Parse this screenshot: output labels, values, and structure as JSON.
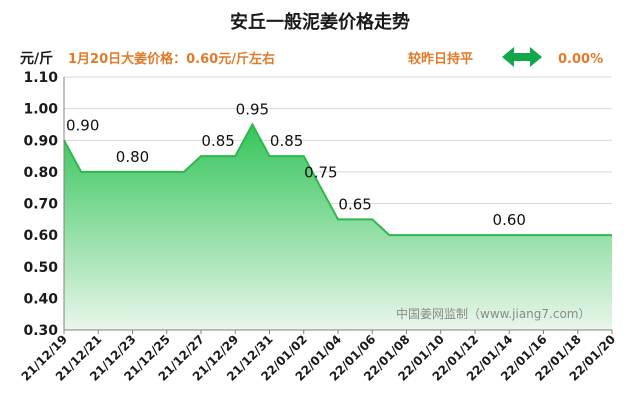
{
  "chart_data": {
    "type": "area",
    "title": "安丘一般泥姜价格走势",
    "yunit": "元/斤",
    "subtitle_left": "1月20日大姜价格：0.60元/斤左右",
    "subtitle_right_label": "较昨日持平",
    "change_pct": "0.00%",
    "watermark": "中国姜网监制（www.jiang7.com）",
    "ylim": [
      0.3,
      1.1
    ],
    "yticks": [
      "0.30",
      "0.40",
      "0.50",
      "0.60",
      "0.70",
      "0.80",
      "0.90",
      "1.00",
      "1.10"
    ],
    "xtick_labels": [
      "21/12/19",
      "21/12/21",
      "21/12/23",
      "21/12/25",
      "21/12/27",
      "21/12/29",
      "21/12/31",
      "22/01/02",
      "22/01/04",
      "22/01/06",
      "22/01/08",
      "22/01/10",
      "22/01/12",
      "22/01/14",
      "22/01/16",
      "22/01/18",
      "22/01/20"
    ],
    "x": [
      "21/12/19",
      "21/12/20",
      "21/12/21",
      "21/12/22",
      "21/12/23",
      "21/12/24",
      "21/12/25",
      "21/12/26",
      "21/12/27",
      "21/12/28",
      "21/12/29",
      "21/12/30",
      "21/12/31",
      "22/01/01",
      "22/01/02",
      "22/01/03",
      "22/01/04",
      "22/01/05",
      "22/01/06",
      "22/01/07",
      "22/01/08",
      "22/01/09",
      "22/01/10",
      "22/01/11",
      "22/01/12",
      "22/01/13",
      "22/01/14",
      "22/01/15",
      "22/01/16",
      "22/01/17",
      "22/01/18",
      "22/01/19",
      "22/01/20"
    ],
    "values": [
      0.9,
      0.8,
      0.8,
      0.8,
      0.8,
      0.8,
      0.8,
      0.8,
      0.85,
      0.85,
      0.85,
      0.95,
      0.85,
      0.85,
      0.85,
      0.75,
      0.65,
      0.65,
      0.65,
      0.6,
      0.6,
      0.6,
      0.6,
      0.6,
      0.6,
      0.6,
      0.6,
      0.6,
      0.6,
      0.6,
      0.6,
      0.6,
      0.6
    ],
    "data_labels": [
      {
        "i": 0,
        "text": "0.90"
      },
      {
        "i": 4,
        "text": "0.80"
      },
      {
        "i": 9,
        "text": "0.85"
      },
      {
        "i": 11,
        "text": "0.95"
      },
      {
        "i": 13,
        "text": "0.85"
      },
      {
        "i": 15,
        "text": "0.75"
      },
      {
        "i": 17,
        "text": "0.65"
      },
      {
        "i": 26,
        "text": "0.60"
      }
    ],
    "grid": true,
    "colors": {
      "title": "#1a1a1a",
      "subtitle": "#e07b2a",
      "line": "#2db84d",
      "fill_top": "#35c45a",
      "fill_bottom": "#e8f7ea",
      "axis": "#808080",
      "grid": "#d9d9d9",
      "arrow": "#12a84a",
      "watermark": "#8a8a8a"
    }
  }
}
